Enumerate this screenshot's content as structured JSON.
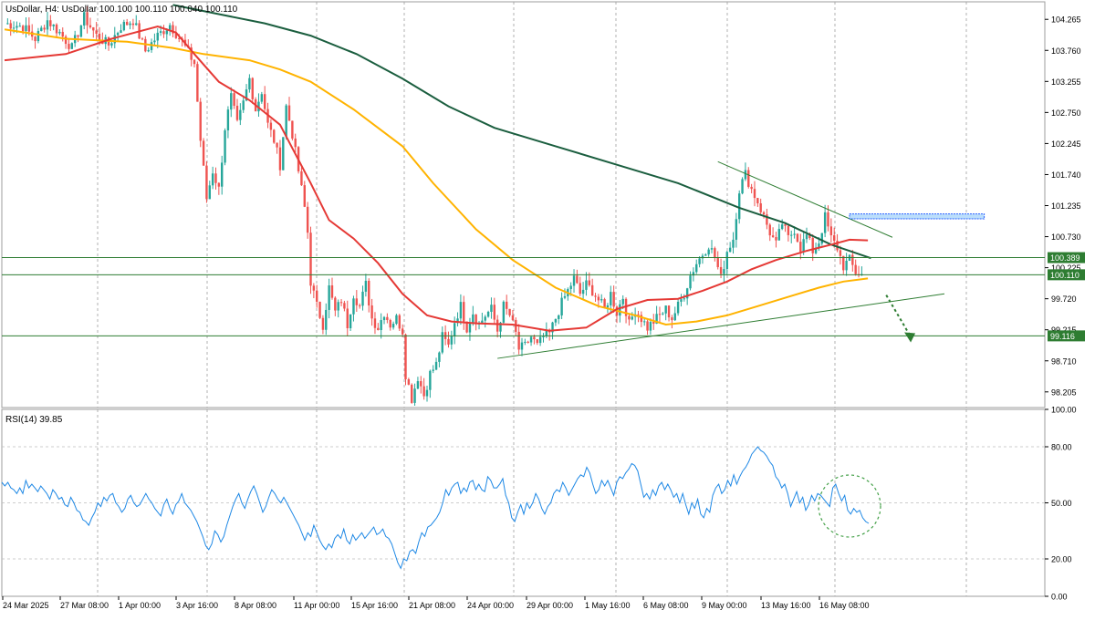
{
  "header": {
    "info": "UsDollar, H4:  UsDollar  100.100 100.110 100.040 100.110"
  },
  "rsi_header": {
    "label": "RSI(14) 39.85"
  },
  "colors": {
    "bull": "#26a69a",
    "bear": "#ef5350",
    "ma_fast": "#e53935",
    "ma_mid": "#ffb300",
    "ma_slow": "#1b5e3f",
    "trend": "#2e7d32",
    "level": "#2e7d32",
    "rsi": "#1e88e5",
    "resistance_box": "#2962ff",
    "grid": "#9e9e9e"
  },
  "chart_data": [
    {
      "type": "candlestick",
      "title": "UsDollar, H4",
      "ylim": [
        97.95,
        104.55
      ],
      "y_ticks": [
        "104.265",
        "103.760",
        "103.255",
        "102.750",
        "102.245",
        "101.740",
        "101.235",
        "100.730",
        "100.225",
        "99.720",
        "99.215",
        "98.710",
        "98.205"
      ],
      "x_ticks": [
        "24 Mar 2025",
        "27 Mar 08:00",
        "1 Apr 00:00",
        "3 Apr 16:00",
        "8 Apr 08:00",
        "11 Apr 00:00",
        "15 Apr 16:00",
        "21 Apr 08:00",
        "24 Apr 00:00",
        "29 Apr 00:00",
        "1 May 16:00",
        "6 May 08:00",
        "9 May 00:00",
        "13 May 16:00",
        "16 May 08:00"
      ],
      "price_path": [
        [
          0,
          104.2
        ],
        [
          6,
          104.15
        ],
        [
          10,
          103.95
        ],
        [
          14,
          104.25
        ],
        [
          18,
          104.05
        ],
        [
          22,
          103.8
        ],
        [
          26,
          104.3
        ],
        [
          30,
          104.0
        ],
        [
          34,
          103.85
        ],
        [
          38,
          104.15
        ],
        [
          42,
          104.25
        ],
        [
          46,
          103.75
        ],
        [
          50,
          104.0
        ],
        [
          54,
          104.18
        ],
        [
          58,
          103.9
        ],
        [
          62,
          103.55
        ],
        [
          64,
          102.3
        ],
        [
          66,
          101.35
        ],
        [
          68,
          101.8
        ],
        [
          70,
          101.5
        ],
        [
          72,
          102.5
        ],
        [
          74,
          103.0
        ],
        [
          76,
          102.55
        ],
        [
          78,
          102.9
        ],
        [
          80,
          103.3
        ],
        [
          82,
          102.8
        ],
        [
          84,
          103.1
        ],
        [
          86,
          102.55
        ],
        [
          88,
          102.3
        ],
        [
          90,
          101.9
        ],
        [
          92,
          102.85
        ],
        [
          94,
          102.4
        ],
        [
          96,
          101.8
        ],
        [
          98,
          101.2
        ],
        [
          99,
          100.8
        ],
        [
          100,
          100.0
        ],
        [
          102,
          99.6
        ],
        [
          104,
          99.3
        ],
        [
          106,
          99.9
        ],
        [
          108,
          99.5
        ],
        [
          110,
          99.7
        ],
        [
          112,
          99.3
        ],
        [
          114,
          99.8
        ],
        [
          116,
          99.6
        ],
        [
          118,
          99.95
        ],
        [
          120,
          99.4
        ],
        [
          122,
          99.25
        ],
        [
          124,
          99.5
        ],
        [
          126,
          99.3
        ],
        [
          128,
          99.4
        ],
        [
          130,
          99.2
        ],
        [
          131,
          98.5
        ],
        [
          133,
          98.1
        ],
        [
          135,
          98.45
        ],
        [
          137,
          98.15
        ],
        [
          139,
          98.5
        ],
        [
          141,
          98.65
        ],
        [
          143,
          99.1
        ],
        [
          145,
          98.95
        ],
        [
          147,
          99.35
        ],
        [
          149,
          99.6
        ],
        [
          151,
          99.25
        ],
        [
          153,
          99.5
        ],
        [
          155,
          99.3
        ],
        [
          157,
          99.45
        ],
        [
          159,
          99.55
        ],
        [
          161,
          99.2
        ],
        [
          163,
          99.6
        ],
        [
          165,
          99.45
        ],
        [
          167,
          99.15
        ],
        [
          168,
          98.9
        ],
        [
          170,
          98.95
        ],
        [
          172,
          99.1
        ],
        [
          174,
          98.95
        ],
        [
          176,
          99.1
        ],
        [
          178,
          99.15
        ],
        [
          180,
          99.4
        ],
        [
          182,
          99.65
        ],
        [
          184,
          99.85
        ],
        [
          186,
          100.05
        ],
        [
          188,
          99.8
        ],
        [
          190,
          99.95
        ],
        [
          192,
          99.85
        ],
        [
          194,
          99.7
        ],
        [
          196,
          99.55
        ],
        [
          198,
          99.8
        ],
        [
          200,
          99.5
        ],
        [
          202,
          99.75
        ],
        [
          204,
          99.3
        ],
        [
          206,
          99.55
        ],
        [
          208,
          99.4
        ],
        [
          210,
          99.25
        ],
        [
          212,
          99.35
        ],
        [
          214,
          99.45
        ],
        [
          216,
          99.55
        ],
        [
          218,
          99.4
        ],
        [
          220,
          99.6
        ],
        [
          222,
          99.8
        ],
        [
          224,
          100.1
        ],
        [
          226,
          100.3
        ],
        [
          228,
          100.45
        ],
        [
          230,
          100.6
        ],
        [
          232,
          100.4
        ],
        [
          234,
          100.05
        ],
        [
          236,
          100.5
        ],
        [
          238,
          100.7
        ],
        [
          240,
          101.5
        ],
        [
          242,
          101.75
        ],
        [
          244,
          101.5
        ],
        [
          246,
          101.3
        ],
        [
          248,
          101.05
        ],
        [
          250,
          100.8
        ],
        [
          252,
          100.6
        ],
        [
          254,
          100.95
        ],
        [
          256,
          100.7
        ],
        [
          258,
          100.85
        ],
        [
          260,
          100.55
        ],
        [
          262,
          100.75
        ],
        [
          264,
          100.5
        ],
        [
          266,
          100.65
        ],
        [
          268,
          101.05
        ],
        [
          270,
          100.7
        ],
        [
          272,
          100.55
        ],
        [
          274,
          100.25
        ],
        [
          276,
          100.35
        ],
        [
          278,
          100.15
        ],
        [
          280,
          100.11
        ]
      ],
      "ma_fast_path": [
        [
          0,
          103.6
        ],
        [
          20,
          103.7
        ],
        [
          35,
          103.95
        ],
        [
          50,
          104.15
        ],
        [
          56,
          104.05
        ],
        [
          62,
          103.7
        ],
        [
          70,
          103.25
        ],
        [
          80,
          102.95
        ],
        [
          90,
          102.55
        ],
        [
          100,
          101.6
        ],
        [
          106,
          101.0
        ],
        [
          114,
          100.7
        ],
        [
          122,
          100.3
        ],
        [
          130,
          99.8
        ],
        [
          138,
          99.45
        ],
        [
          146,
          99.35
        ],
        [
          154,
          99.32
        ],
        [
          166,
          99.3
        ],
        [
          178,
          99.2
        ],
        [
          190,
          99.25
        ],
        [
          200,
          99.55
        ],
        [
          210,
          99.7
        ],
        [
          220,
          99.72
        ],
        [
          228,
          99.85
        ],
        [
          236,
          100.0
        ],
        [
          244,
          100.2
        ],
        [
          252,
          100.35
        ],
        [
          262,
          100.5
        ],
        [
          270,
          100.6
        ],
        [
          276,
          100.68
        ],
        [
          282,
          100.67
        ]
      ],
      "ma_mid_path": [
        [
          0,
          104.1
        ],
        [
          20,
          103.95
        ],
        [
          40,
          103.9
        ],
        [
          55,
          103.8
        ],
        [
          65,
          103.7
        ],
        [
          80,
          103.6
        ],
        [
          90,
          103.45
        ],
        [
          100,
          103.25
        ],
        [
          114,
          102.8
        ],
        [
          130,
          102.2
        ],
        [
          140,
          101.6
        ],
        [
          154,
          100.85
        ],
        [
          166,
          100.35
        ],
        [
          180,
          99.9
        ],
        [
          194,
          99.6
        ],
        [
          206,
          99.45
        ],
        [
          216,
          99.3
        ],
        [
          226,
          99.35
        ],
        [
          236,
          99.45
        ],
        [
          246,
          99.6
        ],
        [
          256,
          99.75
        ],
        [
          266,
          99.9
        ],
        [
          274,
          100.0
        ],
        [
          282,
          100.05
        ]
      ],
      "ma_slow_path": [
        [
          55,
          104.5
        ],
        [
          70,
          104.35
        ],
        [
          85,
          104.2
        ],
        [
          100,
          104.0
        ],
        [
          115,
          103.7
        ],
        [
          130,
          103.3
        ],
        [
          145,
          102.85
        ],
        [
          160,
          102.5
        ],
        [
          180,
          102.2
        ],
        [
          200,
          101.9
        ],
        [
          220,
          101.6
        ],
        [
          240,
          101.2
        ],
        [
          255,
          100.95
        ],
        [
          270,
          100.6
        ],
        [
          283,
          100.38
        ]
      ],
      "horizontal_levels": [
        {
          "price": 100.389,
          "label": "100.389"
        },
        {
          "price": 100.11,
          "label": "100.110"
        },
        {
          "price": 99.116,
          "label": "99.116"
        }
      ],
      "trendlines": [
        {
          "from": [
            161,
            98.75
          ],
          "to": [
            307,
            99.8
          ]
        },
        {
          "from": [
            233,
            101.95
          ],
          "to": [
            290,
            100.72
          ]
        }
      ],
      "resistance_zone": {
        "x_from": 276,
        "x_to": 320,
        "price_low": 101.02,
        "price_high": 101.1
      },
      "forecast_arrow": {
        "from": [
          288,
          99.78
        ],
        "to": [
          296,
          99.1
        ]
      }
    },
    {
      "type": "line",
      "title": "RSI(14) 39.85",
      "ylim": [
        0,
        100
      ],
      "y_ticks": [
        "100.00",
        "80.00",
        "50.00",
        "20.00",
        "0.00"
      ],
      "levels": [
        80,
        50,
        20
      ],
      "values": [
        61,
        59,
        61,
        58,
        57,
        55,
        58,
        55,
        62,
        58,
        60,
        58,
        56,
        59,
        57,
        55,
        52,
        57,
        55,
        52,
        53,
        49,
        48,
        53,
        50,
        46,
        45,
        41,
        40,
        38,
        42,
        45,
        50,
        48,
        53,
        51,
        54,
        55,
        50,
        48,
        45,
        47,
        52,
        54,
        50,
        48,
        49,
        52,
        55,
        52,
        50,
        47,
        45,
        43,
        49,
        52,
        47,
        44,
        49,
        51,
        55,
        50,
        48,
        46,
        43,
        40,
        36,
        32,
        27,
        25,
        28,
        35,
        33,
        29,
        32,
        38,
        43,
        48,
        52,
        55,
        50,
        47,
        52,
        56,
        59,
        55,
        50,
        45,
        48,
        53,
        57,
        55,
        52,
        50,
        53,
        50,
        47,
        44,
        41,
        38,
        34,
        30,
        34,
        32,
        38,
        34,
        30,
        27,
        25,
        28,
        26,
        31,
        33,
        31,
        36,
        30,
        28,
        33,
        30,
        32,
        34,
        31,
        33,
        35,
        37,
        33,
        34,
        36,
        32,
        31,
        28,
        23,
        18,
        15,
        20,
        19,
        24,
        25,
        23,
        29,
        34,
        32,
        37,
        38,
        40,
        42,
        45,
        50,
        57,
        54,
        58,
        60,
        61,
        55,
        58,
        56,
        61,
        62,
        57,
        60,
        57,
        56,
        64,
        62,
        58,
        58,
        60,
        63,
        54,
        50,
        42,
        40,
        45,
        49,
        44,
        50,
        47,
        50,
        55,
        52,
        47,
        44,
        48,
        50,
        55,
        57,
        56,
        61,
        58,
        54,
        57,
        60,
        63,
        65,
        64,
        69,
        66,
        60,
        55,
        57,
        62,
        59,
        62,
        58,
        54,
        61,
        64,
        63,
        66,
        68,
        71,
        70,
        67,
        60,
        53,
        55,
        52,
        57,
        54,
        59,
        61,
        57,
        60,
        57,
        53,
        55,
        50,
        55,
        49,
        44,
        50,
        47,
        52,
        44,
        42,
        47,
        45,
        54,
        58,
        60,
        55,
        57,
        62,
        59,
        65,
        60,
        64,
        67,
        69,
        72,
        76,
        78,
        80,
        78,
        77,
        75,
        72,
        70,
        64,
        62,
        58,
        60,
        55,
        48,
        52,
        56,
        50,
        53,
        46,
        49,
        54,
        51,
        55,
        54,
        52,
        50,
        48,
        58,
        60,
        55,
        51,
        54,
        46,
        44,
        47,
        45,
        46,
        42,
        40,
        39
      ]
    }
  ]
}
